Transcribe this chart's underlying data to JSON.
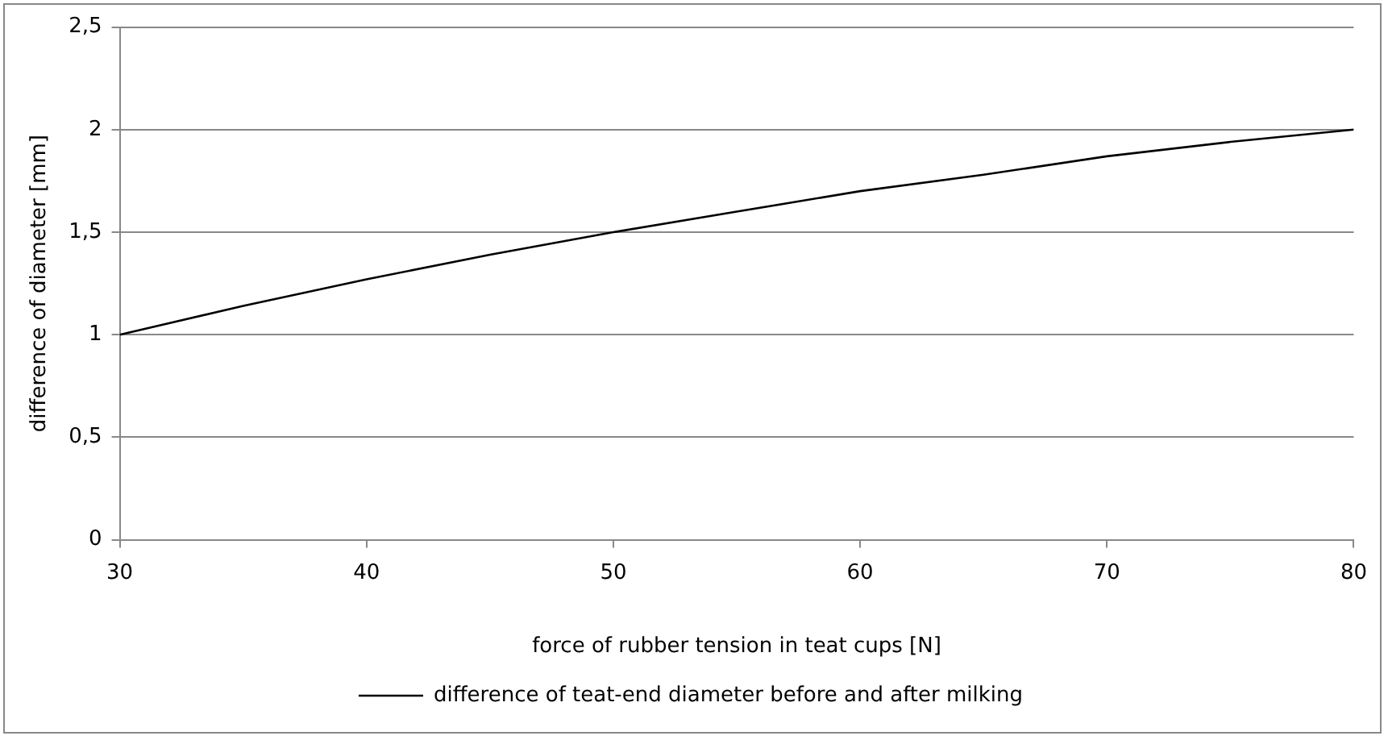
{
  "chart_data": {
    "type": "line",
    "xlabel": "force of rubber tension in teat cups [N]",
    "ylabel": "difference of diameter [mm]",
    "x": [
      30,
      35,
      40,
      45,
      50,
      55,
      60,
      65,
      70,
      75,
      80
    ],
    "series": [
      {
        "name": "difference of teat-end diameter before and after milking",
        "color": "#000000",
        "values": [
          1,
          1.14,
          1.27,
          1.39,
          1.5,
          1.6,
          1.7,
          1.78,
          1.87,
          1.94,
          2
        ]
      }
    ],
    "xlim": [
      30,
      80
    ],
    "xticks": [
      30,
      40,
      50,
      60,
      70,
      80
    ],
    "ylim": [
      0,
      2.5
    ],
    "yticks": [
      0,
      {
        "value": 0.5,
        "label": "0,5"
      },
      1,
      {
        "value": 1.5,
        "label": "1,5"
      },
      2,
      {
        "value": 2.5,
        "label": "2,5"
      }
    ],
    "grid": "y",
    "legend": "bottom",
    "marker": "none",
    "line_style": "solid"
  }
}
